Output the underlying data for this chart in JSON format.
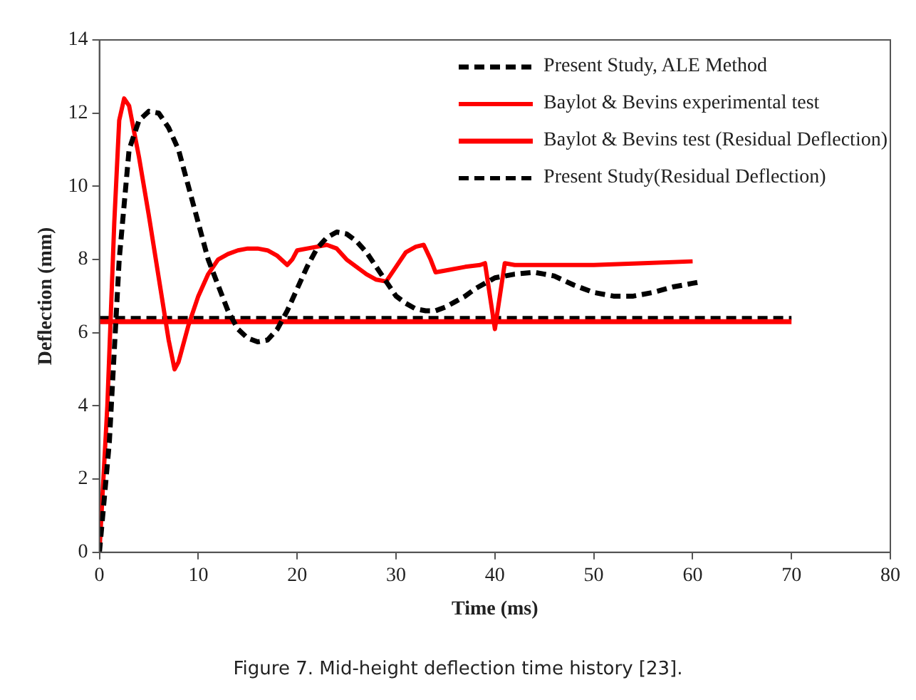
{
  "chart_data": {
    "type": "line",
    "xlabel": "Time (ms)",
    "ylabel": "Deflection (mm)",
    "xlim": [
      0,
      80
    ],
    "xticks": [
      0,
      10,
      20,
      30,
      40,
      50,
      60,
      70,
      80
    ],
    "ylim": [
      0,
      14
    ],
    "yticks": [
      0,
      2,
      4,
      6,
      8,
      10,
      12,
      14
    ],
    "grid": false,
    "legend": "top right",
    "marker": "none",
    "annotations": [
      "Figure 7. Mid-height deflection time history [23]."
    ],
    "series": [
      {
        "name": "Present Study, ALE Method",
        "color": "#000000",
        "line_style": "dashed",
        "x": [
          0,
          1,
          2,
          3,
          4,
          5,
          6,
          7,
          8,
          9,
          10,
          11,
          12,
          13,
          14,
          15,
          16,
          17,
          18,
          19,
          20,
          21,
          22,
          23,
          24,
          25,
          26,
          27,
          28,
          29,
          30,
          31,
          32,
          33,
          34,
          35,
          36,
          37,
          38,
          39,
          40,
          42,
          44,
          46,
          48,
          50,
          52,
          54,
          56,
          58,
          60,
          61
        ],
        "values": [
          0,
          3,
          8,
          11,
          11.8,
          12.05,
          12,
          11.6,
          11,
          10,
          9,
          8,
          7.3,
          6.6,
          6.1,
          5.85,
          5.75,
          5.8,
          6.1,
          6.6,
          7.2,
          7.8,
          8.3,
          8.6,
          8.75,
          8.7,
          8.5,
          8.2,
          7.8,
          7.4,
          7.0,
          6.8,
          6.65,
          6.6,
          6.6,
          6.7,
          6.85,
          7.0,
          7.2,
          7.35,
          7.5,
          7.6,
          7.65,
          7.55,
          7.3,
          7.1,
          7.0,
          7.0,
          7.1,
          7.25,
          7.35,
          7.4
        ]
      },
      {
        "name": "Baylot & Bevins experimental test",
        "color": "#ff0000",
        "line_style": "solid",
        "x": [
          0,
          0.8,
          1.5,
          2,
          2.5,
          3,
          4,
          5,
          6,
          7,
          7.6,
          8,
          9,
          10,
          11,
          12,
          13,
          14,
          15,
          16,
          17,
          18,
          19,
          19.5,
          20,
          22,
          23,
          24,
          25,
          26,
          27,
          28,
          29,
          30,
          31,
          32,
          32.8,
          33.5,
          34,
          35,
          37,
          38.5,
          39,
          39.5,
          40,
          40.5,
          41,
          42,
          45,
          50,
          55,
          60
        ],
        "values": [
          0,
          4,
          9,
          11.8,
          12.4,
          12.2,
          10.8,
          9.2,
          7.5,
          5.8,
          5.0,
          5.2,
          6.2,
          7.0,
          7.6,
          8.0,
          8.15,
          8.25,
          8.3,
          8.3,
          8.25,
          8.1,
          7.85,
          8.0,
          8.25,
          8.35,
          8.4,
          8.3,
          8.0,
          7.8,
          7.6,
          7.45,
          7.4,
          7.8,
          8.2,
          8.35,
          8.4,
          8.0,
          7.65,
          7.7,
          7.8,
          7.85,
          7.9,
          7.0,
          6.1,
          7.0,
          7.9,
          7.85,
          7.85,
          7.85,
          7.9,
          7.95
        ]
      },
      {
        "name": "Baylot & Bevins test (Residual Deflection)",
        "color": "#ff0000",
        "line_style": "solid",
        "x": [
          0,
          70
        ],
        "values": [
          6.3,
          6.3
        ]
      },
      {
        "name": "Present Study(Residual Deflection)",
        "color": "#000000",
        "line_style": "dashed",
        "x": [
          0,
          70
        ],
        "values": [
          6.4,
          6.4
        ]
      }
    ]
  }
}
